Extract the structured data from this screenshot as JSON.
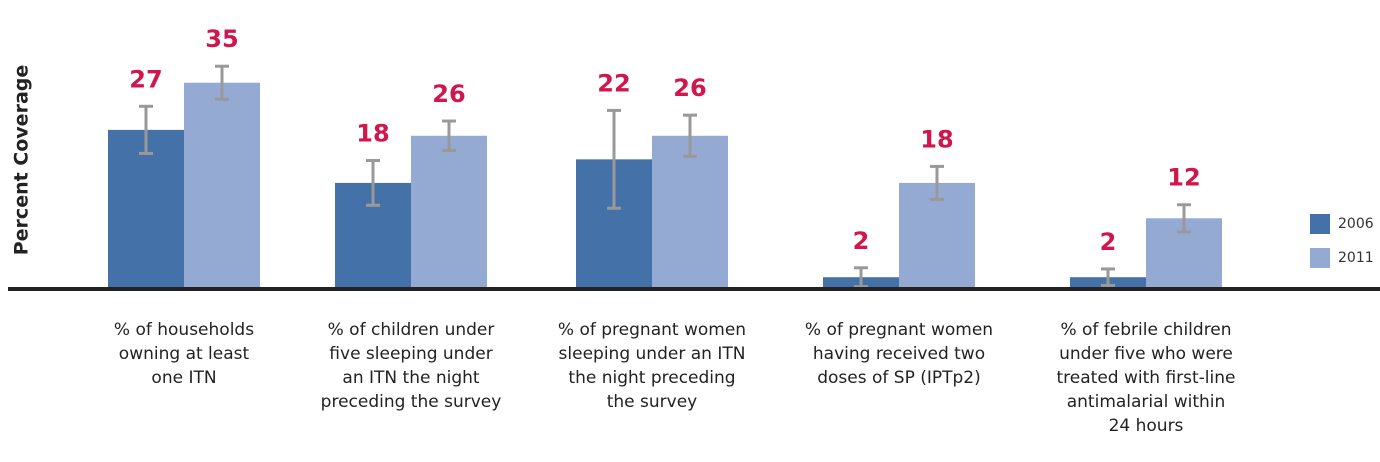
{
  "chart_data": {
    "type": "bar",
    "y_label": "Percent Coverage",
    "categories": [
      [
        "% of households",
        "owning at least",
        "one ITN"
      ],
      [
        "% of children under",
        "five sleeping under",
        "an ITN the night",
        "preceding the survey"
      ],
      [
        "% of pregnant women",
        "sleeping under an ITN",
        "the night preceding",
        "the survey"
      ],
      [
        "% of pregnant women",
        "having received two",
        "doses of SP (IPTp2)"
      ],
      [
        "% of febrile children",
        "under five who were",
        "treated with first-line",
        "antimalarial within",
        "24 hours"
      ]
    ],
    "series": [
      {
        "name": "2006",
        "color": "#4472a8",
        "values": [
          27,
          18,
          22,
          2,
          2
        ],
        "errors": [
          4,
          3.8,
          8.3,
          1.6,
          1.4
        ]
      },
      {
        "name": "2011",
        "color": "#94aad3",
        "values": [
          35,
          26,
          26,
          18,
          12
        ],
        "errors": [
          2.8,
          2.5,
          3.5,
          2.8,
          2.3
        ]
      }
    ],
    "ylim": [
      0,
      47
    ],
    "label_color": "#d0174d",
    "legend": "right"
  }
}
